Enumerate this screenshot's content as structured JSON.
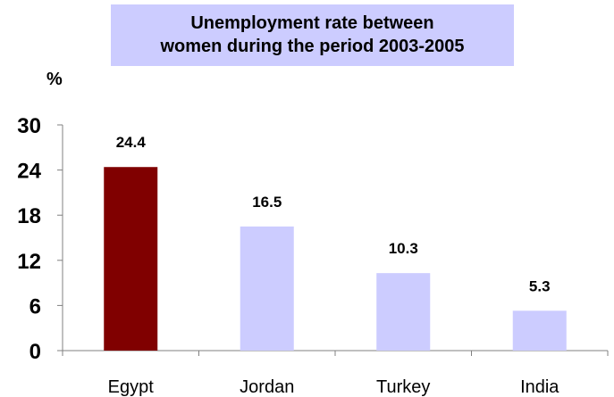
{
  "chart_data": {
    "type": "bar",
    "title_lines": [
      "Unemployment rate between",
      "women during the period 2003-2005"
    ],
    "ylabel": "%",
    "categories": [
      "Egypt",
      "Jordan",
      "Turkey",
      "India"
    ],
    "values": [
      24.4,
      16.5,
      10.3,
      5.3
    ],
    "value_labels": [
      "24.4",
      "16.5",
      "10.3",
      "5.3"
    ],
    "yticks": [
      0,
      6,
      12,
      18,
      24,
      30
    ],
    "ylim": [
      0,
      30
    ],
    "grid": false,
    "legend": "none"
  },
  "colors": {
    "highlight_bar": "#800000",
    "bar": "#ccccff",
    "axis": "#808080",
    "title_bg": "#ccccff"
  }
}
